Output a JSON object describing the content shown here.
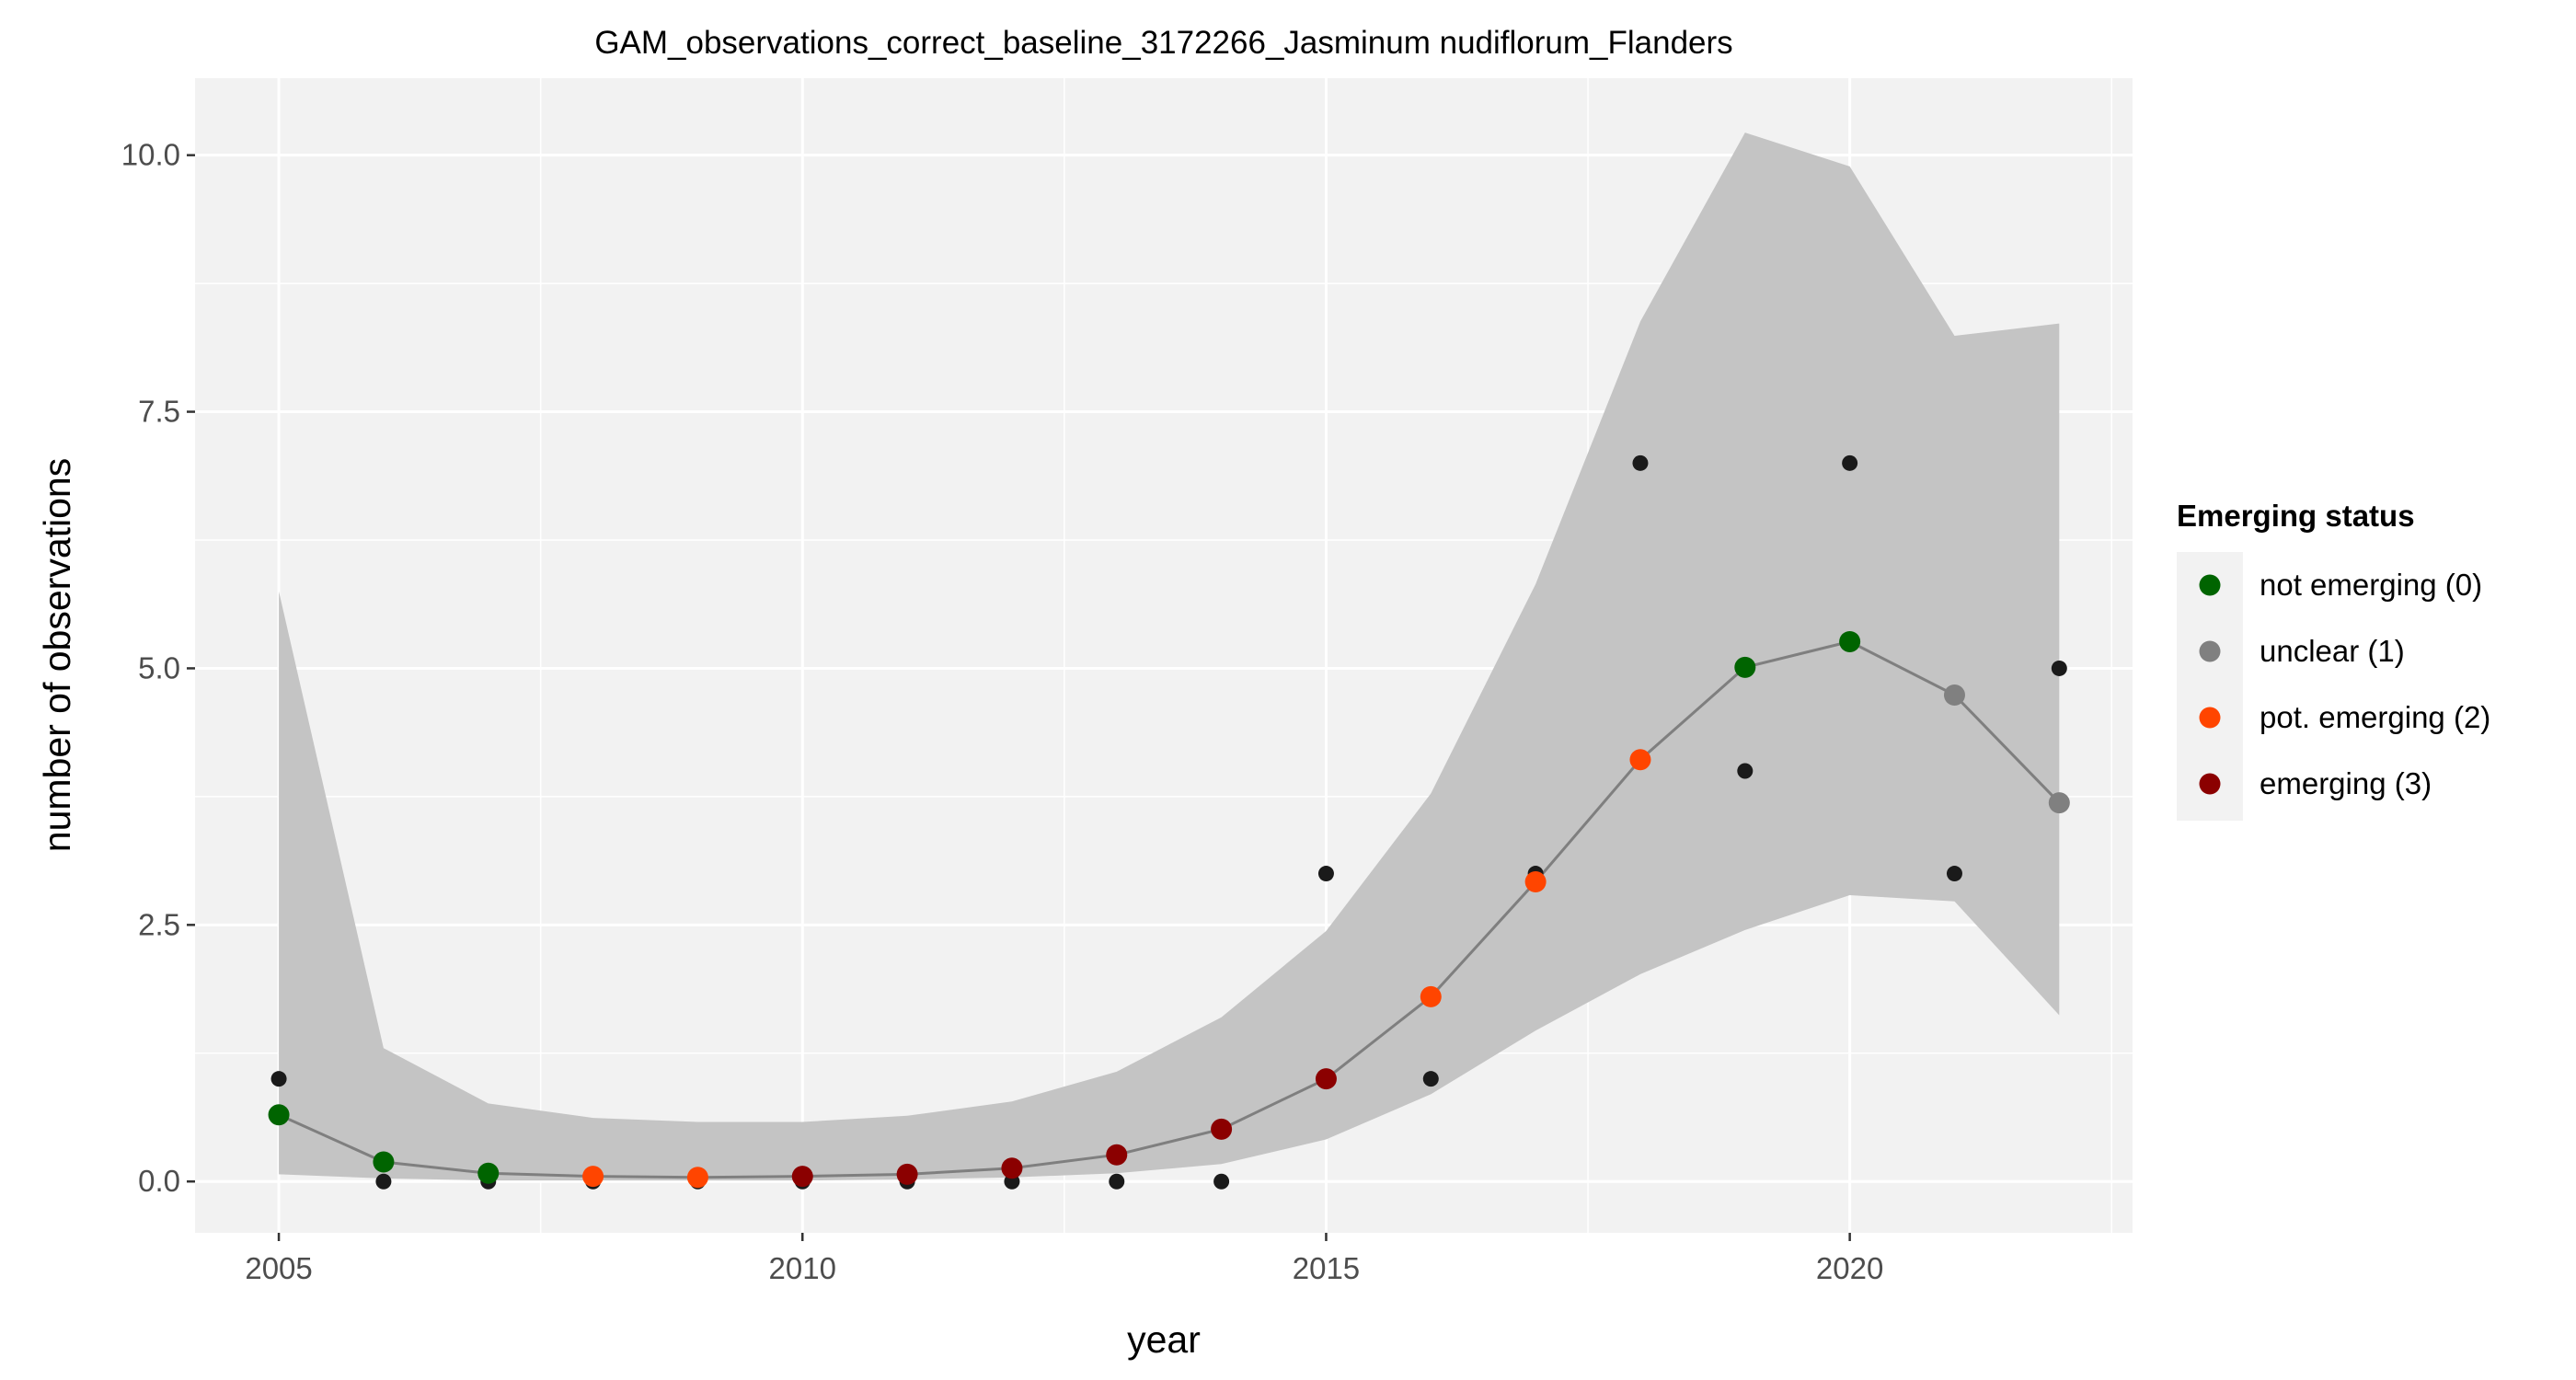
{
  "chart_data": {
    "type": "scatter",
    "title": "GAM_observations_correct_baseline_3172266_Jasminum nudiflorum_Flanders",
    "xlabel": "year",
    "ylabel": "number of observations",
    "xlim": [
      2004.2,
      2022.7
    ],
    "ylim": [
      -0.5,
      10.75
    ],
    "x_ticks": [
      2005,
      2010,
      2015,
      2020
    ],
    "x_tick_labels": [
      "2005",
      "2010",
      "2015",
      "2020"
    ],
    "y_ticks": [
      0,
      2.5,
      5,
      7.5,
      10
    ],
    "y_tick_labels": [
      "0.0",
      "2.5",
      "5.0",
      "7.5",
      "10.0"
    ],
    "grid": true,
    "legend": {
      "title": "Emerging status",
      "position": "right",
      "items": [
        {
          "label": "not emerging (0)",
          "color": "#006400"
        },
        {
          "label": "unclear (1)",
          "color": "#808080"
        },
        {
          "label": "pot. emerging (2)",
          "color": "#ff4500"
        },
        {
          "label": "emerging (3)",
          "color": "#8b0000"
        }
      ]
    },
    "colors": {
      "band": "#c4c4c4",
      "line": "#7f7f7f",
      "observed": "#1a1a1a",
      "panel": "#f2f2f2",
      "grid": "#ffffff"
    },
    "years": [
      2005,
      2006,
      2007,
      2008,
      2009,
      2010,
      2011,
      2012,
      2013,
      2014,
      2015,
      2016,
      2017,
      2018,
      2019,
      2020,
      2021,
      2022
    ],
    "observed": [
      1,
      0,
      0,
      0,
      0,
      0,
      0,
      0,
      0,
      0,
      3,
      1,
      3,
      7,
      4,
      7,
      3,
      5
    ],
    "fit": [
      0.65,
      0.19,
      0.08,
      0.05,
      0.04,
      0.05,
      0.07,
      0.13,
      0.26,
      0.51,
      1.0,
      1.8,
      2.92,
      4.11,
      5.01,
      5.26,
      4.74,
      3.69
    ],
    "lower": [
      0.07,
      0.03,
      0.01,
      0.01,
      0.01,
      0.01,
      0.02,
      0.04,
      0.08,
      0.17,
      0.41,
      0.85,
      1.47,
      2.02,
      2.45,
      2.79,
      2.73,
      1.62
    ],
    "upper": [
      5.75,
      1.3,
      0.76,
      0.62,
      0.58,
      0.58,
      0.64,
      0.78,
      1.07,
      1.6,
      2.44,
      3.78,
      5.82,
      8.38,
      10.22,
      9.89,
      8.24,
      8.36
    ],
    "status": [
      0,
      0,
      0,
      2,
      2,
      3,
      3,
      3,
      3,
      3,
      3,
      2,
      2,
      2,
      0,
      0,
      1,
      1
    ]
  }
}
